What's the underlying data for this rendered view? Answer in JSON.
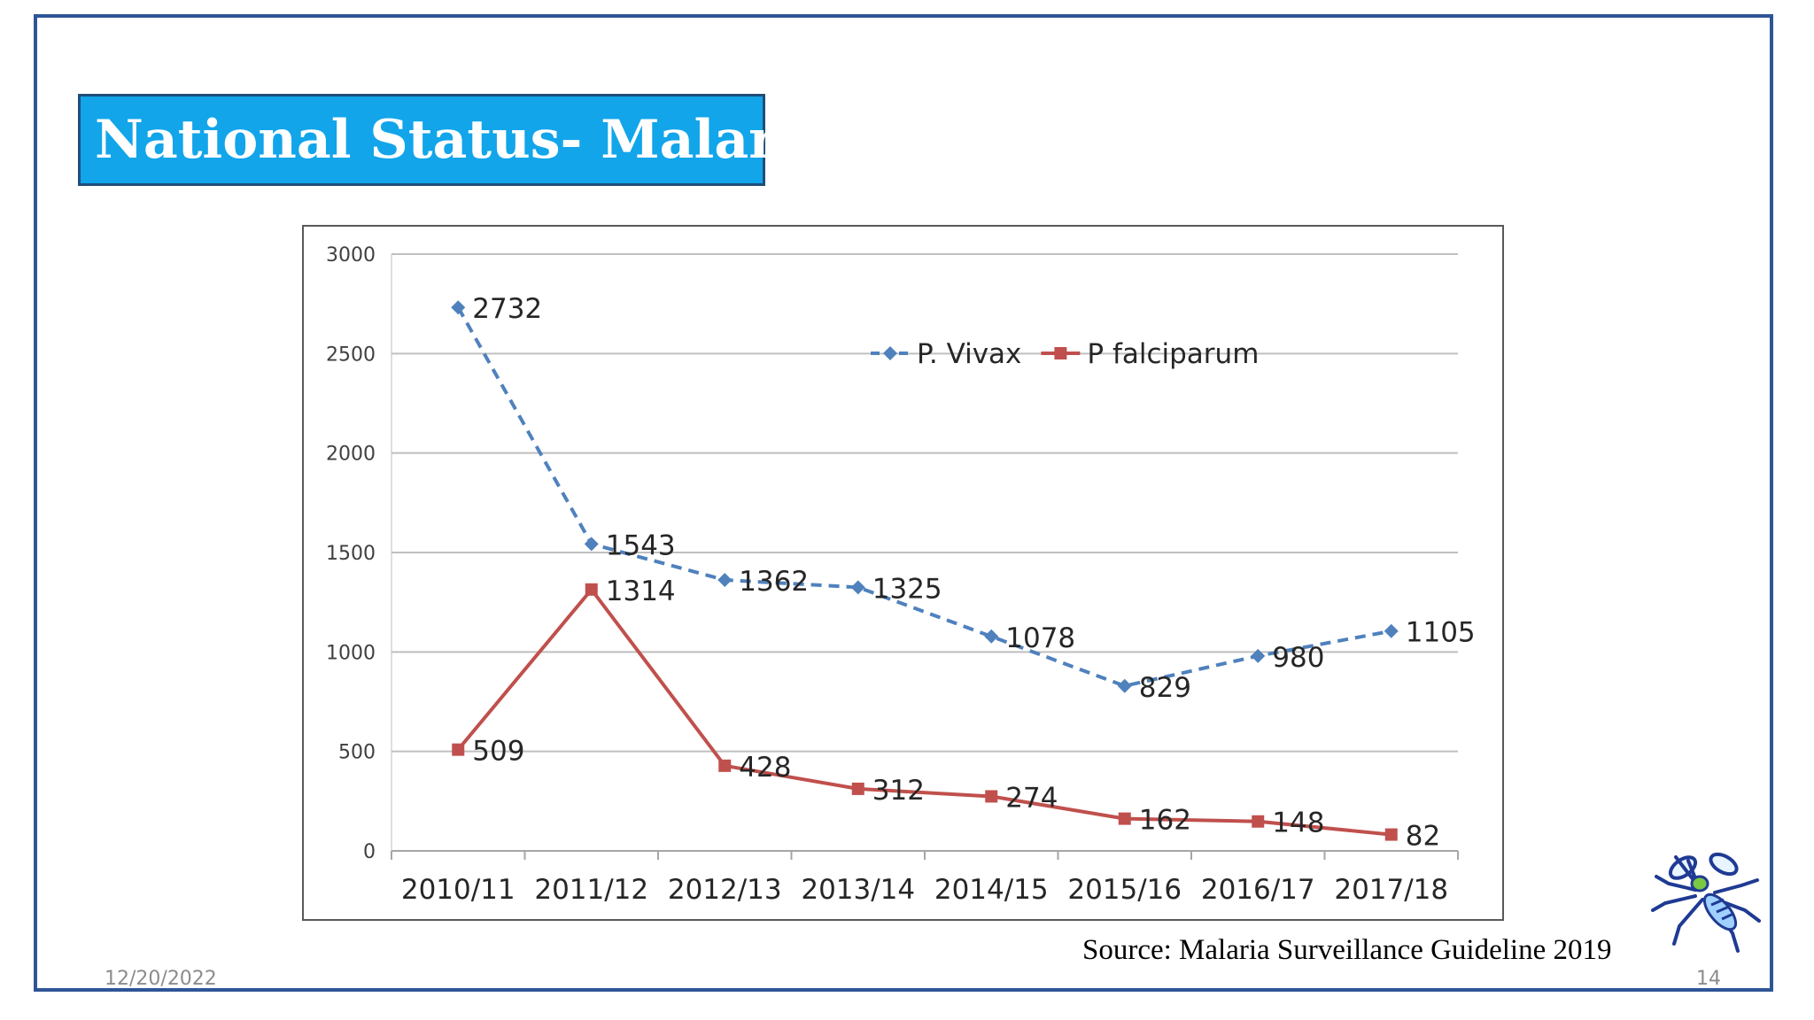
{
  "slide": {
    "title": "National Status- Malaria",
    "source": "Source: Malaria Surveillance Guideline 2019",
    "date": "12/20/2022",
    "page_number": "14",
    "colors": {
      "frame": "#2f5597",
      "title_bg": "#12a5ea",
      "vivax": "#4f81bd",
      "falciparum": "#c0504d"
    },
    "icons": [
      "mosquito-icon"
    ]
  },
  "chart_data": {
    "type": "line",
    "categories": [
      "2010/11",
      "2011/12",
      "2012/13",
      "2013/14",
      "2014/15",
      "2015/16",
      "2016/17",
      "2017/18"
    ],
    "series": [
      {
        "name": "P. Vivax",
        "values": [
          2732,
          1543,
          1362,
          1325,
          1078,
          829,
          980,
          1105
        ],
        "color": "#4f81bd",
        "dashed": true,
        "marker": "diamond"
      },
      {
        "name": "P falciparum",
        "values": [
          509,
          1314,
          428,
          312,
          274,
          162,
          148,
          82
        ],
        "color": "#c0504d",
        "dashed": false,
        "marker": "square"
      }
    ],
    "y_ticks": [
      0,
      500,
      1000,
      1500,
      2000,
      2500,
      3000
    ],
    "ylim": [
      0,
      3000
    ],
    "grid": true,
    "legend": "top-right",
    "data_labels": true
  }
}
